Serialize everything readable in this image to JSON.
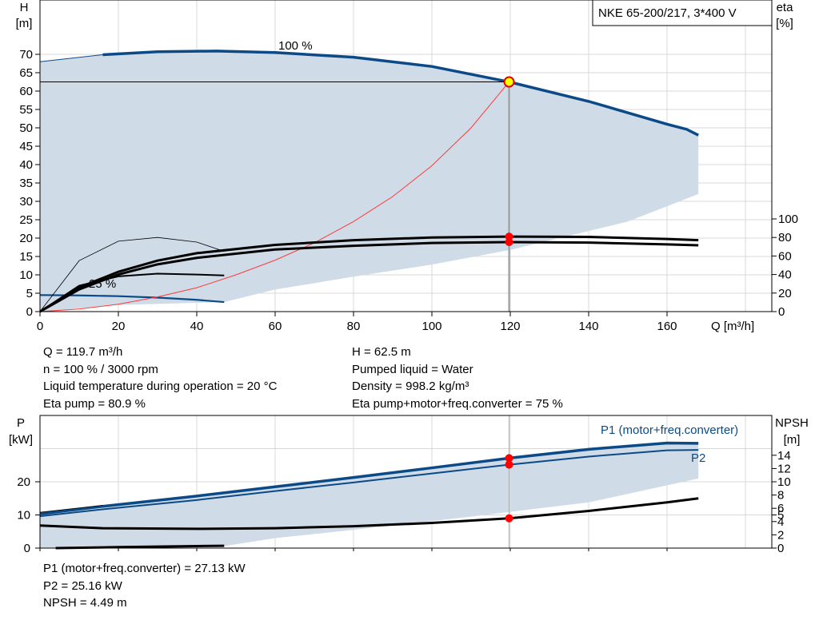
{
  "pump_label": "NKE 65-200/217, 3*400 V",
  "head_chart": {
    "y_label_top": "H",
    "y_label_unit": "[m]",
    "eta_label_top": "eta",
    "eta_label_unit": "[%]",
    "x_label": "Q [m³/h]",
    "curve_100_label": "100 %",
    "curve_25_label": "25 %"
  },
  "power_chart": {
    "y_label_top": "P",
    "y_label_unit": "[kW]",
    "npsh_label_top": "NPSH",
    "npsh_label_unit": "[m]",
    "p1_label": "P1 (motor+freq.converter)",
    "p2_label": "P2"
  },
  "info_left": [
    "Q = 119.7 m³/h",
    "n = 100 % / 3000 rpm",
    "Liquid temperature during operation = 20 °C",
    "Eta pump = 80.9 %"
  ],
  "info_right": [
    "H = 62.5 m",
    "Pumped liquid = Water",
    "Density = 998.2 kg/m³",
    "Eta pump+motor+freq.converter = 75 %"
  ],
  "info_bottom": [
    "P1 (motor+freq.converter) = 27.13 kW",
    "P2 = 25.16 kW",
    "NPSH = 4.49 m"
  ],
  "colors": {
    "curve_blue": "#0b4a86",
    "area_fill": "#cfdbe7",
    "area_light": "#eaf1f8",
    "duty_line": "#ff3b3b",
    "marker": "#ff0000",
    "marker_ring": "#ffff00",
    "grid": "#d8d8d8"
  },
  "chart_data": [
    {
      "type": "line",
      "name": "head-efficiency",
      "x_axis": {
        "label": "Q [m³/h]",
        "range": [
          0,
          180
        ],
        "ticks": [
          0,
          20,
          40,
          60,
          80,
          100,
          120,
          140,
          160
        ]
      },
      "y_axis_left": {
        "label": "H [m]",
        "range": [
          0,
          75
        ],
        "ticks": [
          0,
          5,
          10,
          15,
          20,
          25,
          30,
          35,
          40,
          45,
          50,
          55,
          60,
          65,
          70
        ]
      },
      "y_axis_right": {
        "label": "eta [%]",
        "range": [
          0,
          100
        ],
        "ticks": [
          0,
          20,
          40,
          60,
          80,
          100
        ]
      },
      "grid": true,
      "operating_point": {
        "q": 119.7,
        "h": 62.5
      },
      "series": [
        {
          "name": "100 %",
          "axis": "H",
          "x": [
            16,
            30,
            45,
            60,
            80,
            100,
            119.7,
            140,
            160,
            165,
            168
          ],
          "y": [
            69.9,
            70.7,
            70.9,
            70.5,
            69.2,
            66.7,
            62.5,
            57.2,
            51.0,
            49.6,
            48.0
          ]
        },
        {
          "axis": "H",
          "x": [
            0,
            16
          ],
          "y": [
            68.0,
            69.9
          ]
        },
        {
          "name": "25 %",
          "axis": "H",
          "x": [
            0,
            10,
            20,
            30,
            40,
            47
          ],
          "y": [
            4.5,
            4.4,
            4.2,
            3.8,
            3.2,
            2.6
          ]
        },
        {
          "axis": "H",
          "x": [
            0,
            10,
            20,
            30,
            40,
            50,
            60,
            70,
            80,
            90,
            100,
            110,
            119.7
          ],
          "y": [
            0,
            0.7,
            2.0,
            4.0,
            6.5,
            10.0,
            14.0,
            18.7,
            24.5,
            31.3,
            39.7,
            50.0,
            62.5
          ]
        },
        {
          "axis": "eta",
          "x": [
            0,
            10,
            20,
            30,
            40,
            60,
            80,
            100,
            119.7,
            140,
            160,
            168
          ],
          "y": [
            0,
            26,
            43,
            55,
            63,
            72,
            77,
            80,
            80.9,
            80.6,
            78.3,
            77.0
          ]
        },
        {
          "axis": "eta",
          "x": [
            0,
            10,
            20,
            30,
            40,
            60,
            80,
            100,
            119.7,
            140,
            160,
            168
          ],
          "y": [
            0,
            24,
            40,
            51,
            58,
            67,
            71,
            74,
            75,
            74.5,
            72.5,
            71.5
          ]
        },
        {
          "axis": "eta",
          "x": [
            0,
            10,
            20,
            30,
            40,
            47
          ],
          "y": [
            0,
            28,
            38,
            41,
            40,
            39
          ]
        },
        {
          "axis": "eta",
          "x": [
            0,
            10,
            20,
            30,
            40,
            47
          ],
          "y": [
            0,
            55,
            76,
            80,
            75,
            65
          ]
        }
      ],
      "envelope": {
        "x": [
          0,
          16,
          30,
          45,
          60,
          80,
          100,
          119.7,
          140,
          160,
          168,
          168,
          150,
          120,
          100,
          80,
          60,
          47,
          20,
          0
        ],
        "y": [
          68.0,
          69.9,
          70.7,
          70.9,
          70.5,
          69.2,
          66.7,
          62.5,
          57.2,
          51.0,
          48.0,
          32.0,
          24.5,
          16.8,
          12.8,
          9.5,
          6.0,
          2.6,
          1.8,
          0
        ]
      },
      "markers": [
        {
          "axis": "eta",
          "x": 119.7,
          "y": 80.9
        },
        {
          "axis": "eta",
          "x": 119.7,
          "y": 75
        }
      ]
    },
    {
      "type": "line",
      "name": "power-npsh",
      "x_axis": {
        "range": [
          0,
          180
        ]
      },
      "y_axis_left": {
        "label": "P [kW]",
        "range": [
          0,
          33
        ],
        "ticks": [
          0,
          10,
          20
        ]
      },
      "y_axis_right": {
        "label": "NPSH [m]",
        "range": [
          0,
          16.5
        ],
        "ticks": [
          0,
          2,
          4,
          5,
          6,
          8,
          10,
          12,
          14
        ]
      },
      "grid": true,
      "series": [
        {
          "name": "P1 (motor+freq.converter)",
          "axis": "P",
          "x": [
            0,
            16,
            40,
            60,
            80,
            100,
            119.7,
            140,
            160,
            168
          ],
          "y": [
            10.3,
            12.6,
            15.7,
            18.5,
            21.3,
            24.2,
            27.13,
            29.8,
            31.7,
            31.6
          ]
        },
        {
          "name": "P2",
          "axis": "P",
          "x": [
            0,
            16,
            40,
            60,
            80,
            100,
            119.7,
            140,
            160,
            168
          ],
          "y": [
            9.6,
            11.7,
            14.5,
            17.2,
            19.8,
            22.5,
            25.16,
            27.6,
            29.5,
            29.6
          ]
        },
        {
          "axis": "NPSH",
          "x": [
            0,
            16,
            40,
            60,
            80,
            100,
            119.7,
            140,
            160,
            168
          ],
          "y": [
            3.4,
            3.0,
            2.9,
            3.0,
            3.3,
            3.8,
            4.49,
            5.6,
            6.9,
            7.5
          ]
        },
        {
          "axis": "P",
          "x": [
            4,
            20,
            47
          ],
          "y": [
            0,
            0.3,
            0.7
          ]
        }
      ],
      "envelope": {
        "x": [
          0,
          16,
          40,
          60,
          80,
          100,
          119.7,
          140,
          160,
          168,
          168,
          140,
          110,
          80,
          60,
          47,
          20,
          0
        ],
        "y": [
          10.3,
          12.6,
          15.7,
          18.5,
          21.3,
          24.2,
          27.13,
          29.8,
          31.7,
          31.6,
          21.0,
          13.8,
          9.5,
          5.5,
          3.0,
          0.6,
          0,
          0
        ]
      },
      "markers": [
        {
          "axis": "P",
          "x": 119.7,
          "y": 27.13
        },
        {
          "axis": "P",
          "x": 119.7,
          "y": 25.16
        },
        {
          "axis": "NPSH",
          "x": 119.7,
          "y": 4.49
        }
      ]
    }
  ]
}
